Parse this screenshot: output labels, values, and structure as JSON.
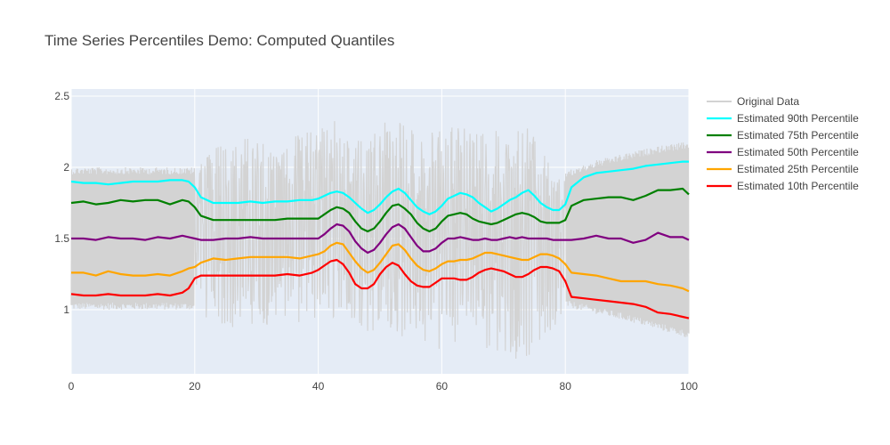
{
  "chart_data": {
    "type": "line",
    "title": "Time Series Percentiles Demo: Computed Quantiles",
    "xlabel": "",
    "ylabel": "",
    "xlim": [
      0,
      100
    ],
    "ylim": [
      0.55,
      2.55
    ],
    "x_ticks": [
      0,
      20,
      40,
      60,
      80,
      100
    ],
    "x_tick_labels": [
      "0",
      "20",
      "40",
      "60",
      "80",
      "100"
    ],
    "y_ticks": [
      1,
      1.5,
      2,
      2.5
    ],
    "y_tick_labels": [
      "1",
      "1.5",
      "2",
      "2.5"
    ],
    "grid": true,
    "legend_position": "right",
    "series": [
      {
        "name": "Original Data",
        "color": "#d3d3d3",
        "style": "dense-noisy-band",
        "envelope": {
          "x": [
            0,
            20,
            25,
            30,
            35,
            40,
            43,
            47,
            52,
            57,
            60,
            65,
            70,
            73,
            77,
            80,
            85,
            90,
            95,
            100
          ],
          "lower": [
            1.0,
            1.0,
            0.85,
            0.88,
            0.9,
            0.92,
            0.95,
            0.85,
            0.8,
            0.75,
            0.72,
            0.75,
            0.7,
            0.62,
            0.78,
            1.02,
            0.97,
            0.92,
            0.86,
            0.8
          ],
          "upper": [
            2.0,
            2.0,
            2.22,
            2.25,
            2.2,
            2.3,
            2.35,
            2.18,
            2.37,
            2.28,
            2.35,
            2.28,
            2.25,
            2.35,
            2.1,
            1.97,
            2.05,
            2.1,
            2.15,
            2.18
          ]
        }
      },
      {
        "name": "Estimated 90th Percentile",
        "color": "#00ffff",
        "x": [
          0,
          2,
          4,
          6,
          8,
          10,
          12,
          14,
          16,
          18,
          19,
          20,
          21,
          23,
          25,
          27,
          29,
          31,
          33,
          35,
          37,
          39,
          40,
          41,
          42,
          43,
          44,
          45,
          46,
          47,
          48,
          49,
          50,
          51,
          52,
          53,
          54,
          55,
          56,
          57,
          58,
          59,
          60,
          61,
          62,
          63,
          64,
          65,
          66,
          67,
          68,
          69,
          70,
          71,
          72,
          73,
          74,
          75,
          76,
          77,
          78,
          79,
          80,
          81,
          83,
          85,
          87,
          89,
          91,
          93,
          95,
          97,
          99,
          100
        ],
        "values": [
          1.9,
          1.89,
          1.89,
          1.88,
          1.89,
          1.9,
          1.9,
          1.9,
          1.91,
          1.91,
          1.9,
          1.86,
          1.79,
          1.75,
          1.75,
          1.75,
          1.76,
          1.75,
          1.76,
          1.76,
          1.77,
          1.77,
          1.78,
          1.8,
          1.82,
          1.83,
          1.82,
          1.79,
          1.75,
          1.71,
          1.68,
          1.7,
          1.74,
          1.79,
          1.83,
          1.85,
          1.82,
          1.77,
          1.72,
          1.69,
          1.67,
          1.69,
          1.73,
          1.78,
          1.8,
          1.82,
          1.81,
          1.79,
          1.75,
          1.72,
          1.69,
          1.71,
          1.74,
          1.77,
          1.79,
          1.82,
          1.84,
          1.8,
          1.75,
          1.72,
          1.7,
          1.7,
          1.74,
          1.86,
          1.93,
          1.96,
          1.97,
          1.98,
          1.99,
          2.01,
          2.02,
          2.03,
          2.04,
          2.04
        ]
      },
      {
        "name": "Estimated 75th Percentile",
        "color": "#008000",
        "x": [
          0,
          2,
          4,
          6,
          8,
          10,
          12,
          14,
          16,
          18,
          19,
          20,
          21,
          23,
          25,
          27,
          29,
          31,
          33,
          35,
          37,
          39,
          40,
          41,
          42,
          43,
          44,
          45,
          46,
          47,
          48,
          49,
          50,
          51,
          52,
          53,
          54,
          55,
          56,
          57,
          58,
          59,
          60,
          61,
          62,
          63,
          64,
          65,
          66,
          67,
          68,
          69,
          70,
          71,
          72,
          73,
          74,
          75,
          76,
          77,
          78,
          79,
          80,
          81,
          83,
          85,
          87,
          89,
          91,
          93,
          95,
          97,
          99,
          100
        ],
        "values": [
          1.75,
          1.76,
          1.74,
          1.75,
          1.77,
          1.76,
          1.77,
          1.77,
          1.74,
          1.77,
          1.76,
          1.72,
          1.66,
          1.63,
          1.63,
          1.63,
          1.63,
          1.63,
          1.63,
          1.64,
          1.64,
          1.64,
          1.64,
          1.67,
          1.7,
          1.72,
          1.71,
          1.68,
          1.62,
          1.57,
          1.55,
          1.57,
          1.62,
          1.68,
          1.73,
          1.74,
          1.71,
          1.67,
          1.61,
          1.57,
          1.55,
          1.57,
          1.62,
          1.66,
          1.67,
          1.68,
          1.67,
          1.64,
          1.62,
          1.61,
          1.6,
          1.61,
          1.63,
          1.65,
          1.67,
          1.68,
          1.67,
          1.65,
          1.62,
          1.61,
          1.61,
          1.61,
          1.63,
          1.73,
          1.77,
          1.78,
          1.79,
          1.79,
          1.77,
          1.8,
          1.84,
          1.84,
          1.85,
          1.81
        ]
      },
      {
        "name": "Estimated 50th Percentile",
        "color": "#800080",
        "x": [
          0,
          2,
          4,
          6,
          8,
          10,
          12,
          14,
          16,
          18,
          19,
          20,
          21,
          23,
          25,
          27,
          29,
          31,
          33,
          35,
          37,
          39,
          40,
          41,
          42,
          43,
          44,
          45,
          46,
          47,
          48,
          49,
          50,
          51,
          52,
          53,
          54,
          55,
          56,
          57,
          58,
          59,
          60,
          61,
          62,
          63,
          64,
          65,
          66,
          67,
          68,
          69,
          70,
          71,
          72,
          73,
          74,
          75,
          76,
          77,
          78,
          79,
          80,
          81,
          83,
          85,
          87,
          89,
          91,
          93,
          95,
          97,
          99,
          100
        ],
        "values": [
          1.5,
          1.5,
          1.49,
          1.51,
          1.5,
          1.5,
          1.49,
          1.51,
          1.5,
          1.52,
          1.51,
          1.5,
          1.49,
          1.49,
          1.5,
          1.5,
          1.51,
          1.5,
          1.5,
          1.5,
          1.5,
          1.5,
          1.5,
          1.53,
          1.57,
          1.6,
          1.59,
          1.55,
          1.48,
          1.43,
          1.4,
          1.42,
          1.47,
          1.53,
          1.58,
          1.6,
          1.57,
          1.51,
          1.45,
          1.41,
          1.41,
          1.43,
          1.47,
          1.5,
          1.5,
          1.51,
          1.5,
          1.49,
          1.49,
          1.5,
          1.49,
          1.49,
          1.5,
          1.51,
          1.5,
          1.51,
          1.5,
          1.5,
          1.5,
          1.5,
          1.49,
          1.49,
          1.49,
          1.49,
          1.5,
          1.52,
          1.5,
          1.5,
          1.47,
          1.49,
          1.54,
          1.51,
          1.51,
          1.49
        ]
      },
      {
        "name": "Estimated 25th Percentile",
        "color": "#ffa500",
        "x": [
          0,
          2,
          4,
          6,
          8,
          10,
          12,
          14,
          16,
          18,
          19,
          20,
          21,
          23,
          25,
          27,
          29,
          31,
          33,
          35,
          37,
          39,
          40,
          41,
          42,
          43,
          44,
          45,
          46,
          47,
          48,
          49,
          50,
          51,
          52,
          53,
          54,
          55,
          56,
          57,
          58,
          59,
          60,
          61,
          62,
          63,
          64,
          65,
          66,
          67,
          68,
          69,
          70,
          71,
          72,
          73,
          74,
          75,
          76,
          77,
          78,
          79,
          80,
          81,
          83,
          85,
          87,
          89,
          91,
          93,
          95,
          97,
          99,
          100
        ],
        "values": [
          1.26,
          1.26,
          1.24,
          1.27,
          1.25,
          1.24,
          1.24,
          1.25,
          1.24,
          1.27,
          1.29,
          1.3,
          1.33,
          1.36,
          1.35,
          1.36,
          1.37,
          1.37,
          1.37,
          1.37,
          1.36,
          1.38,
          1.39,
          1.41,
          1.45,
          1.47,
          1.46,
          1.4,
          1.34,
          1.29,
          1.26,
          1.28,
          1.33,
          1.39,
          1.45,
          1.46,
          1.42,
          1.36,
          1.31,
          1.28,
          1.27,
          1.29,
          1.32,
          1.34,
          1.34,
          1.35,
          1.35,
          1.36,
          1.38,
          1.4,
          1.4,
          1.39,
          1.38,
          1.37,
          1.36,
          1.35,
          1.35,
          1.37,
          1.39,
          1.39,
          1.38,
          1.36,
          1.32,
          1.26,
          1.25,
          1.24,
          1.22,
          1.2,
          1.2,
          1.2,
          1.18,
          1.17,
          1.15,
          1.13
        ]
      },
      {
        "name": "Estimated 10th Percentile",
        "color": "#ff0000",
        "x": [
          0,
          2,
          4,
          6,
          8,
          10,
          12,
          14,
          16,
          18,
          19,
          20,
          21,
          23,
          25,
          27,
          29,
          31,
          33,
          35,
          37,
          39,
          40,
          41,
          42,
          43,
          44,
          45,
          46,
          47,
          48,
          49,
          50,
          51,
          52,
          53,
          54,
          55,
          56,
          57,
          58,
          59,
          60,
          61,
          62,
          63,
          64,
          65,
          66,
          67,
          68,
          69,
          70,
          71,
          72,
          73,
          74,
          75,
          76,
          77,
          78,
          79,
          80,
          81,
          83,
          85,
          87,
          89,
          91,
          93,
          95,
          97,
          99,
          100
        ],
        "values": [
          1.11,
          1.1,
          1.1,
          1.11,
          1.1,
          1.1,
          1.1,
          1.11,
          1.1,
          1.12,
          1.15,
          1.22,
          1.24,
          1.24,
          1.24,
          1.24,
          1.24,
          1.24,
          1.24,
          1.25,
          1.24,
          1.26,
          1.28,
          1.31,
          1.34,
          1.35,
          1.32,
          1.26,
          1.18,
          1.15,
          1.15,
          1.18,
          1.25,
          1.3,
          1.33,
          1.31,
          1.25,
          1.2,
          1.17,
          1.16,
          1.16,
          1.19,
          1.22,
          1.22,
          1.22,
          1.21,
          1.21,
          1.23,
          1.26,
          1.28,
          1.29,
          1.28,
          1.27,
          1.25,
          1.23,
          1.23,
          1.25,
          1.28,
          1.3,
          1.3,
          1.29,
          1.27,
          1.2,
          1.09,
          1.08,
          1.07,
          1.06,
          1.05,
          1.04,
          1.02,
          0.98,
          0.97,
          0.95,
          0.94
        ]
      }
    ]
  }
}
